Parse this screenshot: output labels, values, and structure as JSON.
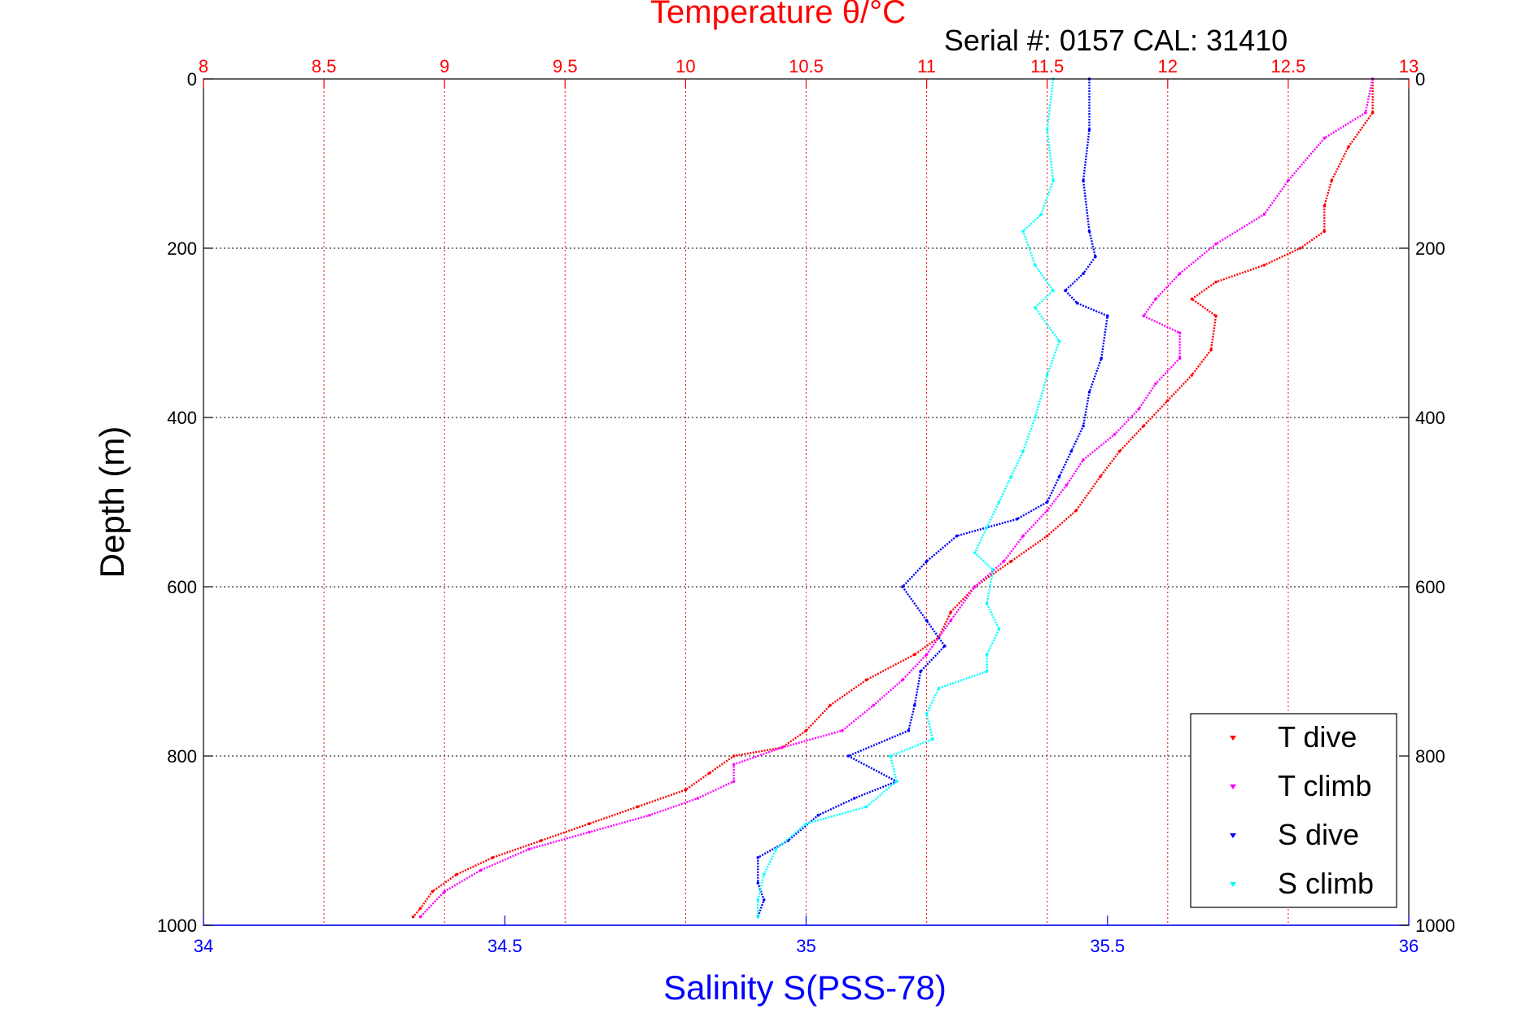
{
  "chart_data": {
    "type": "scatter",
    "title": "Temperature θ/°C",
    "annotation": "Serial #: 0157  CAL: 31410",
    "ylabel": "Depth (m)",
    "xlabel": "Salinity S(PSS-78)",
    "ylim": [
      0,
      1000
    ],
    "y_reversed": true,
    "temperature_axis": {
      "position": "top",
      "range": [
        8,
        13
      ],
      "ticks": [
        "8",
        "8.5",
        "9",
        "9.5",
        "10",
        "10.5",
        "11",
        "11.5",
        "12",
        "12.5",
        "13"
      ],
      "color": "#ff0000"
    },
    "salinity_axis": {
      "position": "bottom",
      "range": [
        34,
        36
      ],
      "ticks": [
        "34",
        "34.5",
        "35",
        "35.5",
        "36"
      ],
      "color": "#0000ff"
    },
    "depth_ticks": [
      "0",
      "200",
      "400",
      "600",
      "800",
      "1000"
    ],
    "grid": true,
    "legend_position": "bottom-right",
    "series": [
      {
        "name": "T dive",
        "axis": "temperature",
        "color": "#ff0000",
        "points": [
          [
            12.85,
            0
          ],
          [
            12.85,
            40
          ],
          [
            12.75,
            80
          ],
          [
            12.68,
            120
          ],
          [
            12.65,
            150
          ],
          [
            12.65,
            180
          ],
          [
            12.55,
            200
          ],
          [
            12.4,
            220
          ],
          [
            12.2,
            240
          ],
          [
            12.1,
            260
          ],
          [
            12.2,
            280
          ],
          [
            12.18,
            320
          ],
          [
            12.1,
            350
          ],
          [
            12.0,
            380
          ],
          [
            11.9,
            410
          ],
          [
            11.8,
            440
          ],
          [
            11.72,
            470
          ],
          [
            11.62,
            510
          ],
          [
            11.5,
            540
          ],
          [
            11.35,
            570
          ],
          [
            11.2,
            600
          ],
          [
            11.1,
            630
          ],
          [
            11.05,
            660
          ],
          [
            10.95,
            680
          ],
          [
            10.75,
            710
          ],
          [
            10.6,
            740
          ],
          [
            10.5,
            770
          ],
          [
            10.4,
            790
          ],
          [
            10.2,
            800
          ],
          [
            10.1,
            820
          ],
          [
            10.0,
            840
          ],
          [
            9.8,
            860
          ],
          [
            9.6,
            880
          ],
          [
            9.4,
            900
          ],
          [
            9.2,
            920
          ],
          [
            9.05,
            940
          ],
          [
            8.95,
            960
          ],
          [
            8.9,
            980
          ],
          [
            8.87,
            990
          ]
        ]
      },
      {
        "name": "T climb",
        "axis": "temperature",
        "color": "#ff00ff",
        "points": [
          [
            12.85,
            0
          ],
          [
            12.82,
            40
          ],
          [
            12.65,
            70
          ],
          [
            12.5,
            120
          ],
          [
            12.4,
            160
          ],
          [
            12.2,
            195
          ],
          [
            12.05,
            230
          ],
          [
            11.95,
            260
          ],
          [
            11.9,
            280
          ],
          [
            12.05,
            300
          ],
          [
            12.05,
            330
          ],
          [
            11.95,
            360
          ],
          [
            11.88,
            390
          ],
          [
            11.78,
            420
          ],
          [
            11.65,
            450
          ],
          [
            11.58,
            480
          ],
          [
            11.5,
            510
          ],
          [
            11.4,
            540
          ],
          [
            11.32,
            570
          ],
          [
            11.2,
            600
          ],
          [
            11.1,
            640
          ],
          [
            11.0,
            680
          ],
          [
            10.9,
            710
          ],
          [
            10.78,
            740
          ],
          [
            10.65,
            770
          ],
          [
            10.4,
            790
          ],
          [
            10.2,
            810
          ],
          [
            10.2,
            830
          ],
          [
            10.05,
            850
          ],
          [
            9.85,
            870
          ],
          [
            9.6,
            890
          ],
          [
            9.35,
            910
          ],
          [
            9.15,
            935
          ],
          [
            9.0,
            960
          ],
          [
            8.9,
            990
          ]
        ]
      },
      {
        "name": "S dive",
        "axis": "salinity",
        "color": "#0000ff",
        "points": [
          [
            35.47,
            0
          ],
          [
            35.47,
            60
          ],
          [
            35.46,
            120
          ],
          [
            35.47,
            180
          ],
          [
            35.48,
            210
          ],
          [
            35.46,
            230
          ],
          [
            35.43,
            250
          ],
          [
            35.45,
            265
          ],
          [
            35.5,
            280
          ],
          [
            35.49,
            330
          ],
          [
            35.47,
            370
          ],
          [
            35.46,
            410
          ],
          [
            35.44,
            440
          ],
          [
            35.42,
            470
          ],
          [
            35.4,
            500
          ],
          [
            35.35,
            520
          ],
          [
            35.25,
            540
          ],
          [
            35.2,
            570
          ],
          [
            35.16,
            600
          ],
          [
            35.2,
            640
          ],
          [
            35.23,
            670
          ],
          [
            35.19,
            700
          ],
          [
            35.18,
            740
          ],
          [
            35.17,
            770
          ],
          [
            35.07,
            800
          ],
          [
            35.15,
            830
          ],
          [
            35.08,
            850
          ],
          [
            35.02,
            870
          ],
          [
            34.97,
            900
          ],
          [
            34.92,
            920
          ],
          [
            34.92,
            950
          ],
          [
            34.93,
            970
          ],
          [
            34.92,
            990
          ]
        ]
      },
      {
        "name": "S climb",
        "axis": "salinity",
        "color": "#00ffff",
        "points": [
          [
            35.41,
            0
          ],
          [
            35.4,
            60
          ],
          [
            35.41,
            120
          ],
          [
            35.39,
            160
          ],
          [
            35.36,
            180
          ],
          [
            35.38,
            220
          ],
          [
            35.41,
            250
          ],
          [
            35.38,
            270
          ],
          [
            35.42,
            310
          ],
          [
            35.4,
            350
          ],
          [
            35.38,
            400
          ],
          [
            35.36,
            440
          ],
          [
            35.34,
            470
          ],
          [
            35.32,
            500
          ],
          [
            35.3,
            530
          ],
          [
            35.28,
            560
          ],
          [
            35.31,
            580
          ],
          [
            35.3,
            620
          ],
          [
            35.32,
            650
          ],
          [
            35.3,
            680
          ],
          [
            35.3,
            700
          ],
          [
            35.22,
            720
          ],
          [
            35.2,
            750
          ],
          [
            35.21,
            780
          ],
          [
            35.14,
            800
          ],
          [
            35.15,
            830
          ],
          [
            35.1,
            860
          ],
          [
            35.0,
            880
          ],
          [
            34.95,
            910
          ],
          [
            34.93,
            940
          ],
          [
            34.92,
            970
          ],
          [
            34.92,
            990
          ]
        ]
      }
    ]
  }
}
